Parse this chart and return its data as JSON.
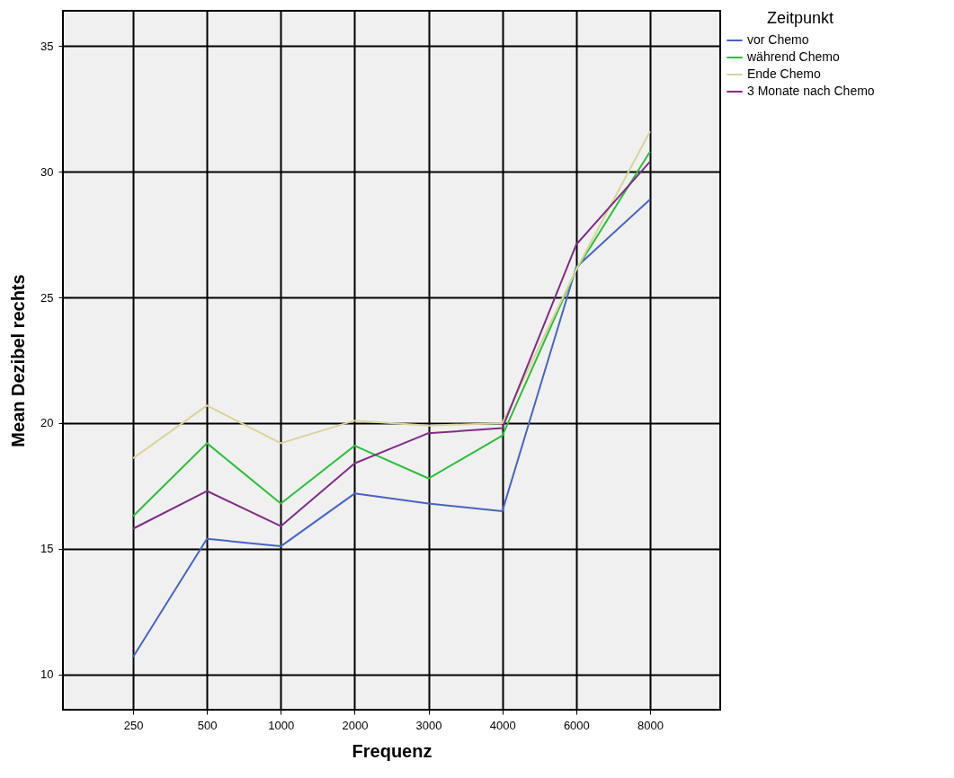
{
  "chart_data": {
    "type": "line",
    "xlabel": "Frequenz",
    "ylabel": "Mean Dezibel rechts",
    "legend_title": "Zeitpunkt",
    "categories": [
      "250",
      "500",
      "1000",
      "2000",
      "3000",
      "4000",
      "6000",
      "8000"
    ],
    "series": [
      {
        "name": "vor Chemo",
        "color": "#4a63c0",
        "values": [
          10.7,
          15.4,
          15.1,
          17.2,
          16.8,
          16.5,
          26.2,
          28.9
        ]
      },
      {
        "name": "während Chemo",
        "color": "#2ebd3c",
        "values": [
          16.3,
          19.2,
          16.8,
          19.1,
          17.8,
          19.5,
          26.1,
          30.8
        ]
      },
      {
        "name": "Ende Chemo",
        "color": "#d8d49c",
        "values": [
          18.6,
          20.7,
          19.2,
          20.1,
          19.9,
          20.0,
          26.1,
          31.6
        ]
      },
      {
        "name": "3 Monate nach Chemo",
        "color": "#7e2d86",
        "values": [
          15.8,
          17.3,
          15.9,
          18.4,
          19.6,
          19.8,
          27.1,
          30.4
        ]
      }
    ],
    "ylim": [
      8.6,
      36.4
    ],
    "yticks": [
      10,
      15,
      20,
      25,
      30,
      35
    ],
    "grid": true,
    "legend": "right",
    "marker": "none",
    "line_style": "solid"
  }
}
